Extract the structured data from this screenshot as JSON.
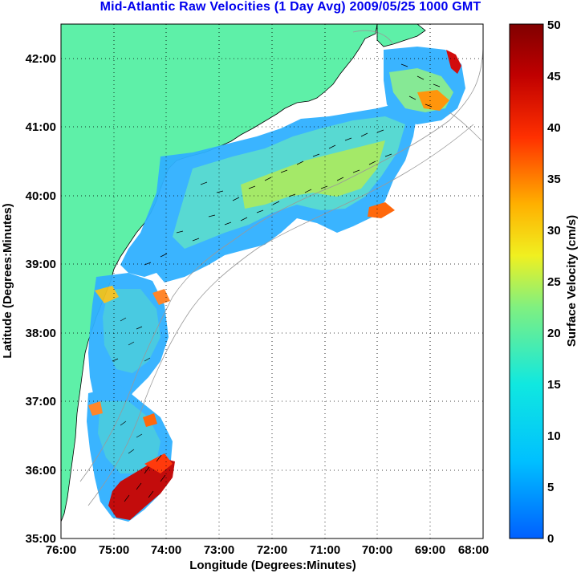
{
  "title": "Mid-Atlantic Raw Velocities (1 Day Avg) 2009/05/25 1000 GMT",
  "map": {
    "xlabel": "Longitude (Degrees:Minutes)",
    "ylabel": "Latitude (Degrees:Minutes)",
    "x_ticks": [
      "76:00",
      "75:00",
      "74:00",
      "73:00",
      "72:00",
      "71:00",
      "70:00",
      "69:00",
      "68:00"
    ],
    "y_ticks": [
      "42:00",
      "41:00",
      "40:00",
      "39:00",
      "38:00",
      "37:00",
      "36:00",
      "35:00"
    ],
    "lon_range": [
      -76,
      -68
    ],
    "lat_range": [
      35,
      42.5
    ],
    "land_color": "#5ef0a8",
    "grid": "dotted"
  },
  "colorbar": {
    "label": "Surface Velocity (cm/s)",
    "units": "cm/s",
    "range": [
      0,
      50
    ],
    "ticks": [
      "50",
      "45",
      "40",
      "35",
      "30",
      "25",
      "20",
      "15",
      "10",
      "5",
      "0"
    ],
    "colormap": "jet"
  }
}
